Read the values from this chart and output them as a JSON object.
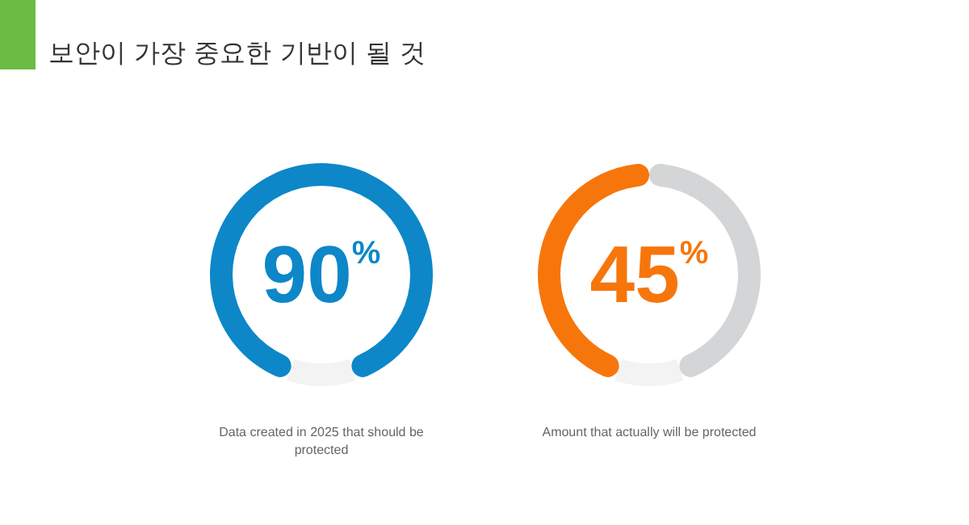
{
  "chart_data": [
    {
      "type": "donut",
      "title": "보안이 가장 중요한 기반이 될 것",
      "categories": [
        null,
        null
      ],
      "values": [
        90,
        10
      ],
      "colors": [
        "#0d87c8",
        "#f3f3f3"
      ],
      "annotations": [
        "90$^{%}$",
        "Data created in 2025 that should be protected"
      ]
    },
    {
      "type": "donut",
      "categories": [
        null,
        null,
        null
      ],
      "values": [
        45,
        45,
        10
      ],
      "colors": [
        "#f7760c",
        "#d3d5d6",
        "#f3f3f3"
      ],
      "annotations": [
        "45$^{%}$",
        "Amount that actually will be protected"
      ]
    }
  ]
}
